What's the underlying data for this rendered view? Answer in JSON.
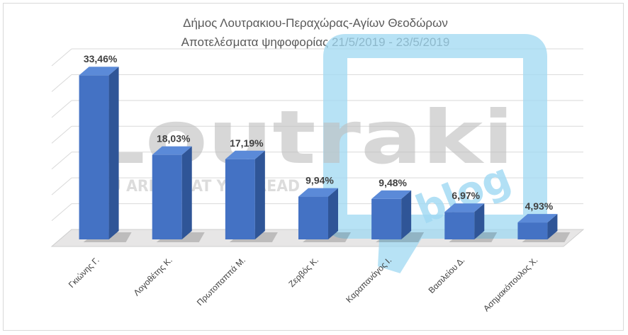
{
  "chart_data": {
    "type": "bar",
    "title_lines": [
      "Δήμος Λουτρακιου-Περαχώρας-Αγίων  Θεοδώρων",
      "Αποτελέσματα ψηφοφορίας  21/5/2019 - 23/5/2019"
    ],
    "categories": [
      "Γκιώνης Γ.",
      "Λογοθέτης Κ.",
      "Πρωτοπαππά Μ.",
      "Ζερβός Κ.",
      "Καραπανάγος Ι.",
      "Βασιλείου Δ.",
      "Ασημακόπουλος Χ."
    ],
    "values": [
      33.46,
      18.03,
      17.19,
      9.94,
      9.48,
      6.97,
      4.93
    ],
    "data_labels": [
      "33,46%",
      "18,03%",
      "17,19%",
      "9,94%",
      "9,48%",
      "6,97%",
      "4,93%"
    ],
    "unit": "%",
    "ylim": [
      0,
      35
    ],
    "grid": true,
    "legend": "none",
    "three_d": true,
    "colors": {
      "bar_front": "#4472c4",
      "bar_side": "#2f5597",
      "bar_top": "#5b8ad8",
      "grid": "#d9d9d9",
      "floor": "#e7e6e6"
    }
  },
  "watermark": {
    "logo_text": "Loutraki",
    "tagline": "YOU ARE WHAT YOU READ",
    "blog_text": "blog",
    "colors": {
      "text": "#bfbfbf",
      "bubble": "#9fd8f2"
    }
  }
}
